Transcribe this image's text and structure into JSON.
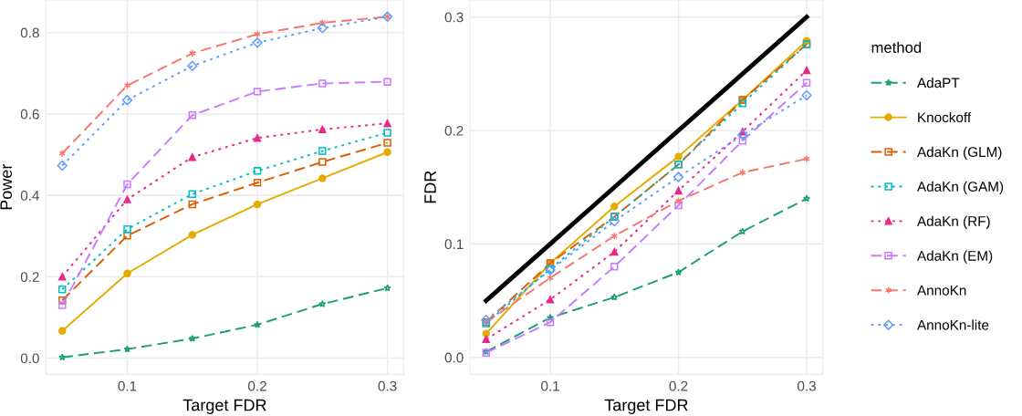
{
  "chart_data": [
    {
      "type": "line",
      "xlabel": "Target FDR",
      "ylabel": "Power",
      "x": [
        0.05,
        0.1,
        0.15,
        0.2,
        0.25,
        0.3
      ],
      "xlim": [
        0.0375,
        0.3125
      ],
      "xticks": [
        0.1,
        0.2,
        0.3
      ],
      "ylim": [
        -0.04,
        0.88
      ],
      "yticks": [
        {
          "value": 0,
          "label": "0.0"
        },
        0.2,
        0.4,
        0.6,
        0.8
      ],
      "grid": true,
      "legend": "right",
      "legend_title": "method",
      "series": [
        {
          "name": "AdaPT",
          "color": "#1b9e77",
          "line_style": "dashed",
          "marker": "star",
          "values": [
            0.002,
            0.022,
            0.048,
            0.082,
            0.133,
            0.172
          ]
        },
        {
          "name": "Knockoff",
          "color": "#e6ab02",
          "line_style": "solid",
          "marker": "circle",
          "values": [
            0.067,
            0.208,
            0.303,
            0.378,
            0.442,
            0.506
          ]
        },
        {
          "name": "AdaKn (GLM)",
          "color": "#d95f02",
          "line_style": "dashed",
          "marker": "square",
          "values": [
            0.142,
            0.301,
            0.378,
            0.431,
            0.482,
            0.529
          ]
        },
        {
          "name": "AdaKn (GAM)",
          "color": "#00bfc4",
          "line_style": "dotted",
          "marker": "square",
          "values": [
            0.169,
            0.317,
            0.403,
            0.46,
            0.509,
            0.554
          ]
        },
        {
          "name": "AdaKn (RF)",
          "color": "#e7298a",
          "line_style": "dotted",
          "marker": "triangle",
          "values": [
            0.2,
            0.39,
            0.494,
            0.541,
            0.562,
            0.577
          ]
        },
        {
          "name": "AdaKn (EM)",
          "color": "#c77cff",
          "line_style": "dashed",
          "marker": "square",
          "values": [
            0.13,
            0.427,
            0.597,
            0.655,
            0.675,
            0.679
          ]
        },
        {
          "name": "AnnoKn",
          "color": "#f8766d",
          "line_style": "dashed",
          "marker": "cross",
          "values": [
            0.503,
            0.67,
            0.749,
            0.796,
            0.824,
            0.839
          ]
        },
        {
          "name": "AnnoKn-lite",
          "color": "#619cff",
          "line_style": "dotted",
          "marker": "diamond",
          "values": [
            0.473,
            0.634,
            0.718,
            0.775,
            0.811,
            0.839
          ]
        }
      ]
    },
    {
      "type": "line",
      "xlabel": "Target FDR",
      "ylabel": "FDR",
      "x": [
        0.05,
        0.1,
        0.15,
        0.2,
        0.25,
        0.3
      ],
      "xlim": [
        0.0375,
        0.3125
      ],
      "xticks": [
        0.1,
        0.2,
        0.3
      ],
      "ylim": [
        -0.015,
        0.315
      ],
      "yticks": [
        {
          "value": 0,
          "label": "0.0"
        },
        0.1,
        0.2,
        0.3
      ],
      "grid": true,
      "series": [
        {
          "color": "#000000",
          "line_style": "solid",
          "marker": "none",
          "values": [
            0.05,
            0.1,
            0.15,
            0.2,
            0.25,
            0.3
          ]
        },
        {
          "color": "#1b9e77",
          "line_style": "dashed",
          "marker": "star",
          "values": [
            0.005,
            0.035,
            0.053,
            0.075,
            0.111,
            0.14
          ]
        },
        {
          "color": "#e6ab02",
          "line_style": "solid",
          "marker": "circle",
          "values": [
            0.021,
            0.083,
            0.133,
            0.177,
            0.227,
            0.279
          ]
        },
        {
          "color": "#d95f02",
          "line_style": "dashed",
          "marker": "square",
          "values": [
            0.031,
            0.083,
            0.124,
            0.17,
            0.227,
            0.276
          ]
        },
        {
          "color": "#00bfc4",
          "line_style": "dotted",
          "marker": "square",
          "values": [
            0.03,
            0.078,
            0.124,
            0.17,
            0.224,
            0.276
          ]
        },
        {
          "color": "#e7298a",
          "line_style": "dotted",
          "marker": "triangle",
          "values": [
            0.016,
            0.051,
            0.093,
            0.147,
            0.199,
            0.253
          ]
        },
        {
          "color": "#c77cff",
          "line_style": "dashed",
          "marker": "square",
          "values": [
            0.004,
            0.031,
            0.08,
            0.134,
            0.191,
            0.242
          ]
        },
        {
          "color": "#f8766d",
          "line_style": "dashed",
          "marker": "cross",
          "values": [
            0.031,
            0.07,
            0.107,
            0.138,
            0.163,
            0.175
          ]
        },
        {
          "color": "#619cff",
          "line_style": "dotted",
          "marker": "diamond",
          "values": [
            0.033,
            0.077,
            0.12,
            0.159,
            0.196,
            0.231
          ]
        }
      ]
    }
  ]
}
